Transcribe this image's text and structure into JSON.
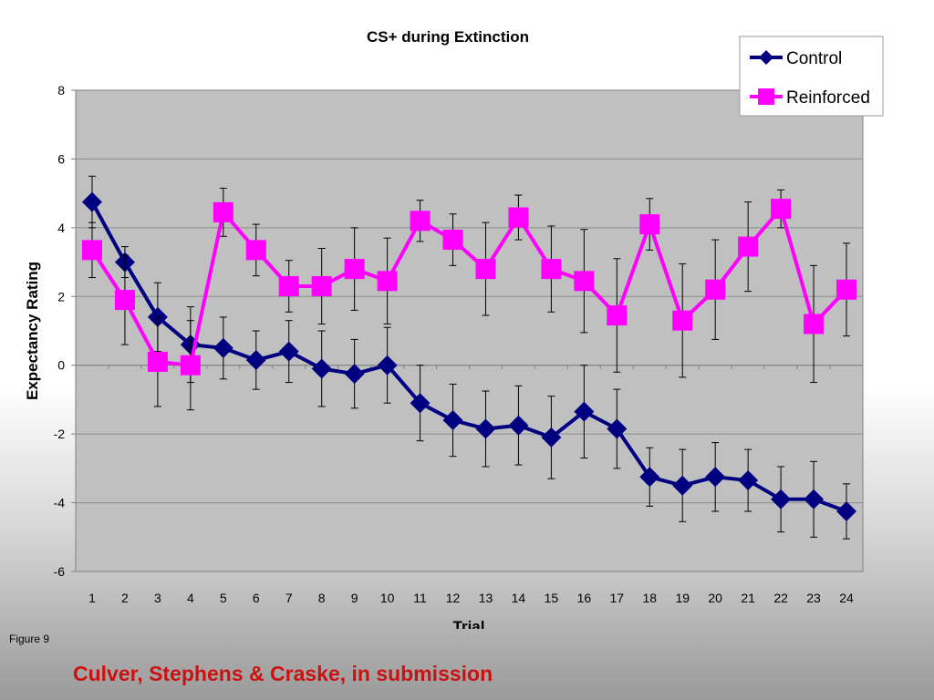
{
  "chart_data": {
    "type": "line",
    "title": "CS+ during Extinction",
    "xlabel": "Trial",
    "ylabel": "Expectancy Rating",
    "ylim": [
      -6,
      8
    ],
    "yticks": [
      -6,
      -4,
      -2,
      0,
      2,
      4,
      6,
      8
    ],
    "categories": [
      "1",
      "2",
      "3",
      "4",
      "5",
      "6",
      "7",
      "8",
      "9",
      "10",
      "11",
      "12",
      "13",
      "14",
      "15",
      "16",
      "17",
      "18",
      "19",
      "20",
      "21",
      "22",
      "23",
      "24"
    ],
    "grid": "horizontal",
    "legend_position": "top-right",
    "series": [
      {
        "name": "Control",
        "color": "#000080",
        "marker": "diamond",
        "values": [
          4.75,
          3.0,
          1.4,
          0.6,
          0.5,
          0.15,
          0.4,
          -0.1,
          -0.25,
          0.0,
          -1.1,
          -1.6,
          -1.85,
          -1.75,
          -2.1,
          -1.35,
          -1.85,
          -3.25,
          -3.5,
          -3.25,
          -3.35,
          -3.9,
          -3.9,
          -4.25
        ],
        "errors": [
          0.75,
          0.45,
          1.0,
          1.1,
          0.9,
          0.85,
          0.9,
          1.1,
          1.0,
          1.1,
          1.1,
          1.05,
          1.1,
          1.15,
          1.2,
          1.35,
          1.15,
          0.85,
          1.05,
          1.0,
          0.9,
          0.95,
          1.1,
          0.8
        ]
      },
      {
        "name": "Reinforced",
        "color": "#ff00ff",
        "marker": "square",
        "values": [
          3.35,
          1.9,
          0.1,
          0.0,
          4.45,
          3.35,
          2.3,
          2.3,
          2.8,
          2.45,
          4.2,
          3.65,
          2.8,
          4.3,
          2.8,
          2.45,
          1.45,
          4.1,
          1.3,
          2.2,
          3.45,
          4.55,
          1.2,
          2.2
        ],
        "errors": [
          0.8,
          1.3,
          1.3,
          1.3,
          0.7,
          0.75,
          0.75,
          1.1,
          1.2,
          1.25,
          0.6,
          0.75,
          1.35,
          0.65,
          1.25,
          1.5,
          1.65,
          0.75,
          1.65,
          1.45,
          1.3,
          0.55,
          1.7,
          1.35
        ]
      }
    ]
  },
  "figure_label": "Figure 9",
  "citation": "Culver, Stephens & Craske, in submission",
  "colors": {
    "plot_area": "#c0c0c0",
    "gridline": "#8c8c8c",
    "citation": "#cc1111"
  }
}
